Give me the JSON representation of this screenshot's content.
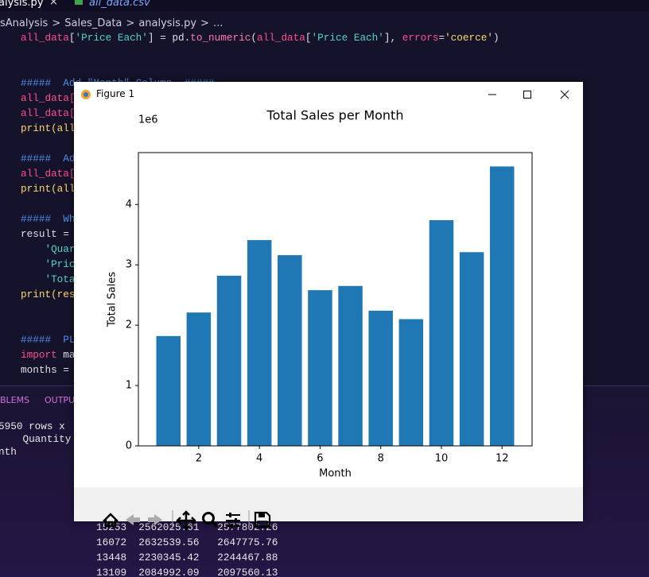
{
  "editor_tabs": [
    "alysis.py",
    "all_data.csv"
  ],
  "breadcrumb": [
    "sAnalysis",
    "Sales_Data",
    "analysis.py",
    "..."
  ],
  "code_lines": [
    [
      {
        "text": "all_data",
        "color": "#ff4f8b"
      },
      {
        "text": "[",
        "color": "#e0e0e0"
      },
      {
        "text": "'Price Each'",
        "color": "#4fd6c8"
      },
      {
        "text": "] = pd.",
        "color": "#e0e0e0"
      },
      {
        "text": "to_numeric",
        "color": "#ff7ab0"
      },
      {
        "text": "(",
        "color": "#e0e0e0"
      },
      {
        "text": "all_data",
        "color": "#ff4f8b"
      },
      {
        "text": "[",
        "color": "#e0e0e0"
      },
      {
        "text": "'Price Each'",
        "color": "#4fd6c8"
      },
      {
        "text": "], ",
        "color": "#e0e0e0"
      },
      {
        "text": "errors",
        "color": "#ff4f8b"
      },
      {
        "text": "=",
        "color": "#e0e0e0"
      },
      {
        "text": "'coerce'",
        "color": "#ffd866"
      },
      {
        "text": ")",
        "color": "#e0e0e0"
      }
    ],
    [],
    [],
    [
      {
        "text": "#####  Add \"Month\" Column  #####",
        "color": "#4f8fe8"
      }
    ],
    [
      {
        "text": "all_data[",
        "color": "#ff4f8b"
      }
    ],
    [
      {
        "text": "all_data[",
        "color": "#ff4f8b"
      }
    ],
    [
      {
        "text": "print(all",
        "color": "#ffd866"
      }
    ],
    [],
    [
      {
        "text": "#####  Ad",
        "color": "#4f8fe8"
      }
    ],
    [
      {
        "text": "all_data[",
        "color": "#ff4f8b"
      }
    ],
    [
      {
        "text": "print(all",
        "color": "#ffd866"
      }
    ],
    [],
    [
      {
        "text": "#####  Wh",
        "color": "#4f8fe8"
      }
    ],
    [
      {
        "text": "result =",
        "color": "#e0e0e0"
      }
    ],
    [
      {
        "text": "    'Quar",
        "color": "#4fd6c8"
      }
    ],
    [
      {
        "text": "    'Pric",
        "color": "#4fd6c8"
      }
    ],
    [
      {
        "text": "    'Tota",
        "color": "#4fd6c8"
      }
    ],
    [
      {
        "text": "print(res",
        "color": "#ffd866"
      }
    ],
    [],
    [],
    [
      {
        "text": "#####  PL",
        "color": "#4f8fe8"
      }
    ],
    [
      {
        "text": "import",
        "color": "#ff4f8b"
      },
      {
        "text": " ma",
        "color": "#e0e0e0"
      }
    ],
    [
      {
        "text": "months =",
        "color": "#e0e0e0"
      }
    ]
  ],
  "panel_tabs": [
    "BLEMS",
    "OUTPUT"
  ],
  "terminal_top": [
    "5950 rows x",
    "    Quantity",
    "nth"
  ],
  "terminal_rows": [
    "15253  2562025.61   2577802.26",
    "16072  2632539.56   2647775.76",
    "13448  2230345.42   2244467.88",
    "13109  2084992.09   2097560.13"
  ],
  "figure_window": {
    "title": "Figure 1"
  },
  "chart_data": {
    "type": "bar",
    "title": "Total Sales per Month",
    "xlabel": "Month",
    "ylabel": "Total Sales",
    "y_offset": "1e6",
    "x": [
      1,
      2,
      3,
      4,
      5,
      6,
      7,
      8,
      9,
      10,
      11,
      12
    ],
    "values": [
      1.82,
      2.21,
      2.82,
      3.41,
      3.16,
      2.58,
      2.65,
      2.24,
      2.1,
      3.74,
      3.21,
      4.63
    ],
    "color": "#1f77b4",
    "xlim": [
      0.01,
      12.99
    ],
    "xticks": [
      2,
      4,
      6,
      8,
      10,
      12
    ],
    "ylim": [
      0,
      4.86
    ],
    "yticks": [
      0,
      1,
      2,
      3,
      4
    ]
  }
}
